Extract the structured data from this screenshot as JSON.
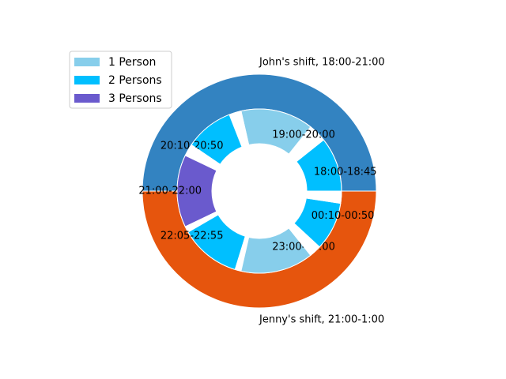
{
  "chart_data": {
    "type": "nested-pie",
    "outer": {
      "categories": [
        "John's shift, 18:00-21:00",
        "Jenny's shift, 21:00-1:00"
      ],
      "values": [
        1,
        1
      ],
      "colors": [
        "#3383c1",
        "#e6550d"
      ]
    },
    "inner": {
      "categories": [
        "18:00-18:45",
        null,
        "19:00-20:00",
        null,
        "20:10-20:50",
        null,
        "21:00-22:00",
        null,
        "22:05-22:55",
        null,
        "23:00-24:00",
        null,
        "00:10-00:50",
        null
      ],
      "values": [
        45,
        15,
        60,
        10,
        40,
        10,
        60,
        5,
        50,
        5,
        60,
        10,
        40,
        10
      ],
      "colors": [
        "#00bfff",
        "#ffffff",
        "#87ceeb",
        "#ffffff",
        "#00bfff",
        "#ffffff",
        "#6a5acd",
        "#ffffff",
        "#00bfff",
        "#ffffff",
        "#87ceeb",
        "#ffffff",
        "#00bfff",
        "#ffffff"
      ]
    },
    "legend": [
      {
        "name": "1 Person",
        "color": "#87ceeb"
      },
      {
        "name": "2 Persons",
        "color": "#00bfff"
      },
      {
        "name": "3 Persons",
        "color": "#6a5acd"
      }
    ],
    "legend_loc": "upper left"
  }
}
